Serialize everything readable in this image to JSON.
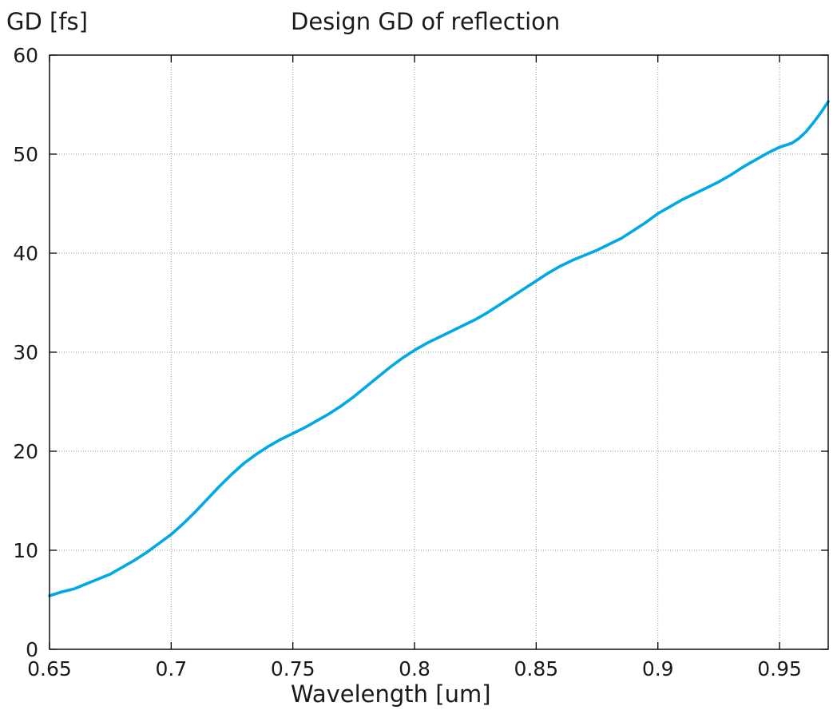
{
  "chart_data": {
    "type": "line",
    "title": "Design GD of reflection",
    "xlabel": "Wavelength [um]",
    "ylabel": "GD [fs]",
    "xlim": [
      0.65,
      0.97
    ],
    "ylim": [
      0,
      60
    ],
    "x_ticks": [
      0.65,
      0.7,
      0.75,
      0.8,
      0.85,
      0.9,
      0.95
    ],
    "x_tick_labels": [
      "0.65",
      "0.7",
      "0.75",
      "0.8",
      "0.85",
      "0.9",
      "0.95"
    ],
    "y_ticks": [
      0,
      10,
      20,
      30,
      40,
      50,
      60
    ],
    "y_tick_labels": [
      "0",
      "10",
      "20",
      "30",
      "40",
      "50",
      "60"
    ],
    "grid": true,
    "series": [
      {
        "color": "#00a8e6",
        "x": [
          0.65,
          0.655,
          0.66,
          0.665,
          0.67,
          0.675,
          0.68,
          0.685,
          0.69,
          0.695,
          0.7,
          0.705,
          0.71,
          0.715,
          0.72,
          0.725,
          0.73,
          0.735,
          0.74,
          0.745,
          0.75,
          0.755,
          0.76,
          0.765,
          0.77,
          0.775,
          0.78,
          0.785,
          0.79,
          0.795,
          0.8,
          0.805,
          0.81,
          0.815,
          0.82,
          0.825,
          0.83,
          0.835,
          0.84,
          0.845,
          0.85,
          0.855,
          0.86,
          0.865,
          0.87,
          0.875,
          0.88,
          0.885,
          0.89,
          0.895,
          0.9,
          0.905,
          0.91,
          0.915,
          0.92,
          0.925,
          0.93,
          0.935,
          0.94,
          0.945,
          0.95,
          0.955,
          0.958,
          0.961,
          0.964,
          0.967,
          0.97
        ],
        "y": [
          5.4,
          5.8,
          6.1,
          6.6,
          7.1,
          7.6,
          8.3,
          9.0,
          9.8,
          10.7,
          11.6,
          12.7,
          13.9,
          15.2,
          16.5,
          17.7,
          18.8,
          19.7,
          20.5,
          21.2,
          21.8,
          22.4,
          23.1,
          23.8,
          24.6,
          25.5,
          26.5,
          27.5,
          28.5,
          29.4,
          30.2,
          30.9,
          31.5,
          32.1,
          32.7,
          33.3,
          34.0,
          34.8,
          35.6,
          36.4,
          37.2,
          38.0,
          38.7,
          39.3,
          39.8,
          40.3,
          40.9,
          41.5,
          42.3,
          43.1,
          44.0,
          44.7,
          45.4,
          46.0,
          46.6,
          47.2,
          47.9,
          48.7,
          49.4,
          50.1,
          50.7,
          51.1,
          51.6,
          52.3,
          53.2,
          54.2,
          55.3
        ]
      }
    ]
  }
}
